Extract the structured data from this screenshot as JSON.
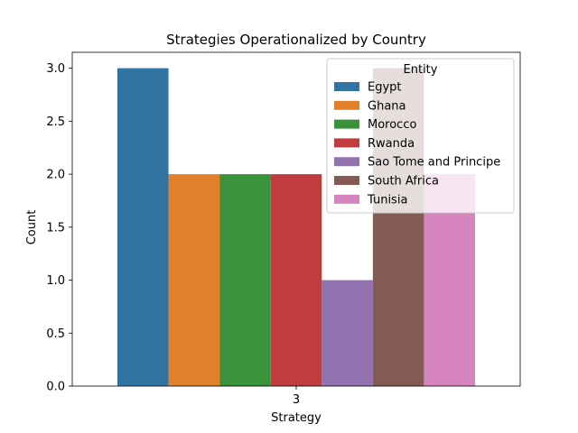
{
  "chart_data": {
    "type": "bar",
    "title": "Strategies Operationalized by Country",
    "xlabel": "Strategy",
    "ylabel": "Count",
    "categories": [
      "3"
    ],
    "ylim": [
      0,
      3.15
    ],
    "yticks": [
      "0.0",
      "0.5",
      "1.0",
      "1.5",
      "2.0",
      "2.5",
      "3.0"
    ],
    "legend_title": "Entity",
    "legend_position": "top-right",
    "grid": false,
    "series": [
      {
        "name": "Egypt",
        "values": [
          3
        ],
        "color": "#3274a1"
      },
      {
        "name": "Ghana",
        "values": [
          2
        ],
        "color": "#e1812c"
      },
      {
        "name": "Morocco",
        "values": [
          2
        ],
        "color": "#3a923a"
      },
      {
        "name": "Rwanda",
        "values": [
          2
        ],
        "color": "#c03d3e"
      },
      {
        "name": "Sao Tome and Principe",
        "values": [
          1
        ],
        "color": "#9372b2"
      },
      {
        "name": "South Africa",
        "values": [
          3
        ],
        "color": "#845b53"
      },
      {
        "name": "Tunisia",
        "values": [
          2
        ],
        "color": "#d684bd"
      }
    ]
  }
}
